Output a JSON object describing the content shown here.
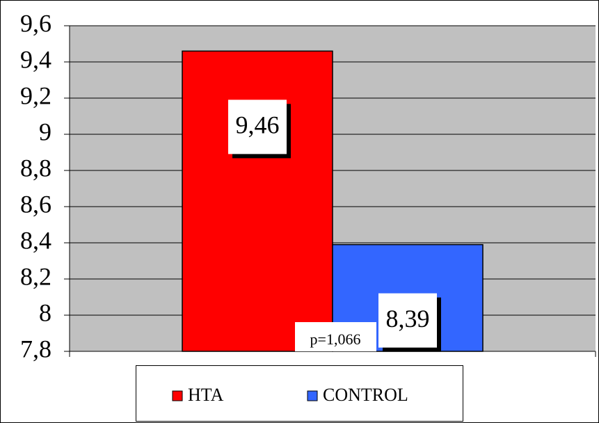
{
  "chart_data": {
    "type": "bar",
    "categories": [
      null
    ],
    "series": [
      {
        "name": "HTA",
        "color": "#ff0000",
        "values": [
          9.46
        ],
        "value_labels": [
          "9,46"
        ]
      },
      {
        "name": "CONTROL",
        "color": "#3366ff",
        "values": [
          8.39
        ],
        "value_labels": [
          "8,39"
        ]
      }
    ],
    "ylim": [
      7.8,
      9.6
    ],
    "yticks": [
      {
        "value": 7.8,
        "label": "7,8"
      },
      8,
      {
        "value": 8.2,
        "label": "8,2"
      },
      {
        "value": 8.4,
        "label": "8,4"
      },
      {
        "value": 8.6,
        "label": "8,6"
      },
      {
        "value": 8.8,
        "label": "8,8"
      },
      9,
      {
        "value": 9.2,
        "label": "9,2"
      },
      {
        "value": 9.4,
        "label": "9,4"
      },
      {
        "value": 9.6,
        "label": "9,6"
      }
    ],
    "grid": true,
    "annotation": "p=1,066",
    "legend": "bottom"
  }
}
